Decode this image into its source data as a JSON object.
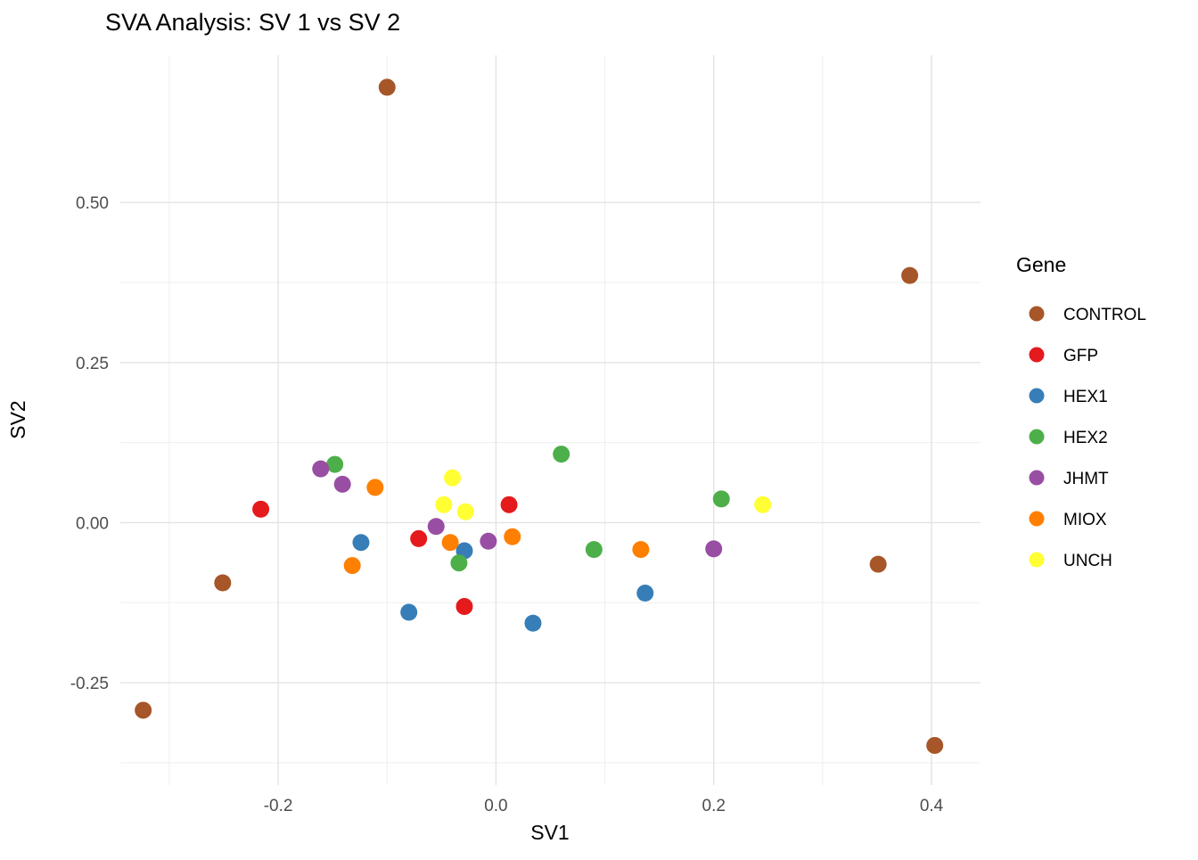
{
  "chart_data": {
    "type": "scatter",
    "title": "SVA Analysis: SV 1  vs SV 2",
    "xlabel": "SV1",
    "ylabel": "SV2",
    "legend_title": "Gene",
    "legend_position": "right",
    "grid": true,
    "xlim": [
      -0.345,
      0.445
    ],
    "ylim": [
      -0.41,
      0.73
    ],
    "x_ticks": [
      -0.2,
      0,
      0.2,
      0.4
    ],
    "x_tick_labels": [
      "-0.2",
      "0.0",
      "0.2",
      "0.4"
    ],
    "x_minor_ticks": [
      -0.3,
      -0.1,
      0.1,
      0.3
    ],
    "y_ticks": [
      0.5,
      0.25,
      0,
      -0.25
    ],
    "y_tick_labels": [
      "0.50",
      "0.25",
      "0.00",
      "-0.25"
    ],
    "y_minor_ticks": [
      0.375,
      0.125,
      -0.125,
      -0.375
    ],
    "series": [
      {
        "name": "CONTROL",
        "color": "#A65628",
        "points": [
          [
            -0.1,
            0.68
          ],
          [
            0.38,
            0.386
          ],
          [
            -0.251,
            -0.094
          ],
          [
            0.351,
            -0.065
          ],
          [
            -0.324,
            -0.293
          ],
          [
            0.403,
            -0.348
          ]
        ]
      },
      {
        "name": "GFP",
        "color": "#E41A1C",
        "points": [
          [
            -0.216,
            0.021
          ],
          [
            -0.071,
            -0.025
          ],
          [
            0.012,
            0.028
          ],
          [
            -0.029,
            -0.131
          ]
        ]
      },
      {
        "name": "HEX1",
        "color": "#377EB8",
        "points": [
          [
            -0.124,
            -0.031
          ],
          [
            -0.029,
            -0.044
          ],
          [
            -0.08,
            -0.14
          ],
          [
            0.034,
            -0.157
          ],
          [
            0.137,
            -0.11
          ]
        ]
      },
      {
        "name": "HEX2",
        "color": "#4DAF4A",
        "points": [
          [
            -0.148,
            0.091
          ],
          [
            0.06,
            0.107
          ],
          [
            0.207,
            0.037
          ],
          [
            0.09,
            -0.042
          ],
          [
            -0.034,
            -0.063
          ]
        ]
      },
      {
        "name": "JHMT",
        "color": "#984EA3",
        "points": [
          [
            -0.161,
            0.084
          ],
          [
            -0.141,
            0.06
          ],
          [
            -0.055,
            -0.006
          ],
          [
            -0.007,
            -0.029
          ],
          [
            0.2,
            -0.041
          ]
        ]
      },
      {
        "name": "MIOX",
        "color": "#FF7F00",
        "points": [
          [
            -0.111,
            0.055
          ],
          [
            -0.042,
            -0.031
          ],
          [
            0.015,
            -0.022
          ],
          [
            0.133,
            -0.042
          ],
          [
            -0.132,
            -0.067
          ]
        ]
      },
      {
        "name": "UNCH",
        "color": "#FFFF33",
        "points": [
          [
            -0.04,
            0.07
          ],
          [
            -0.048,
            0.028
          ],
          [
            -0.028,
            0.017
          ],
          [
            0.245,
            0.028
          ]
        ]
      }
    ]
  }
}
